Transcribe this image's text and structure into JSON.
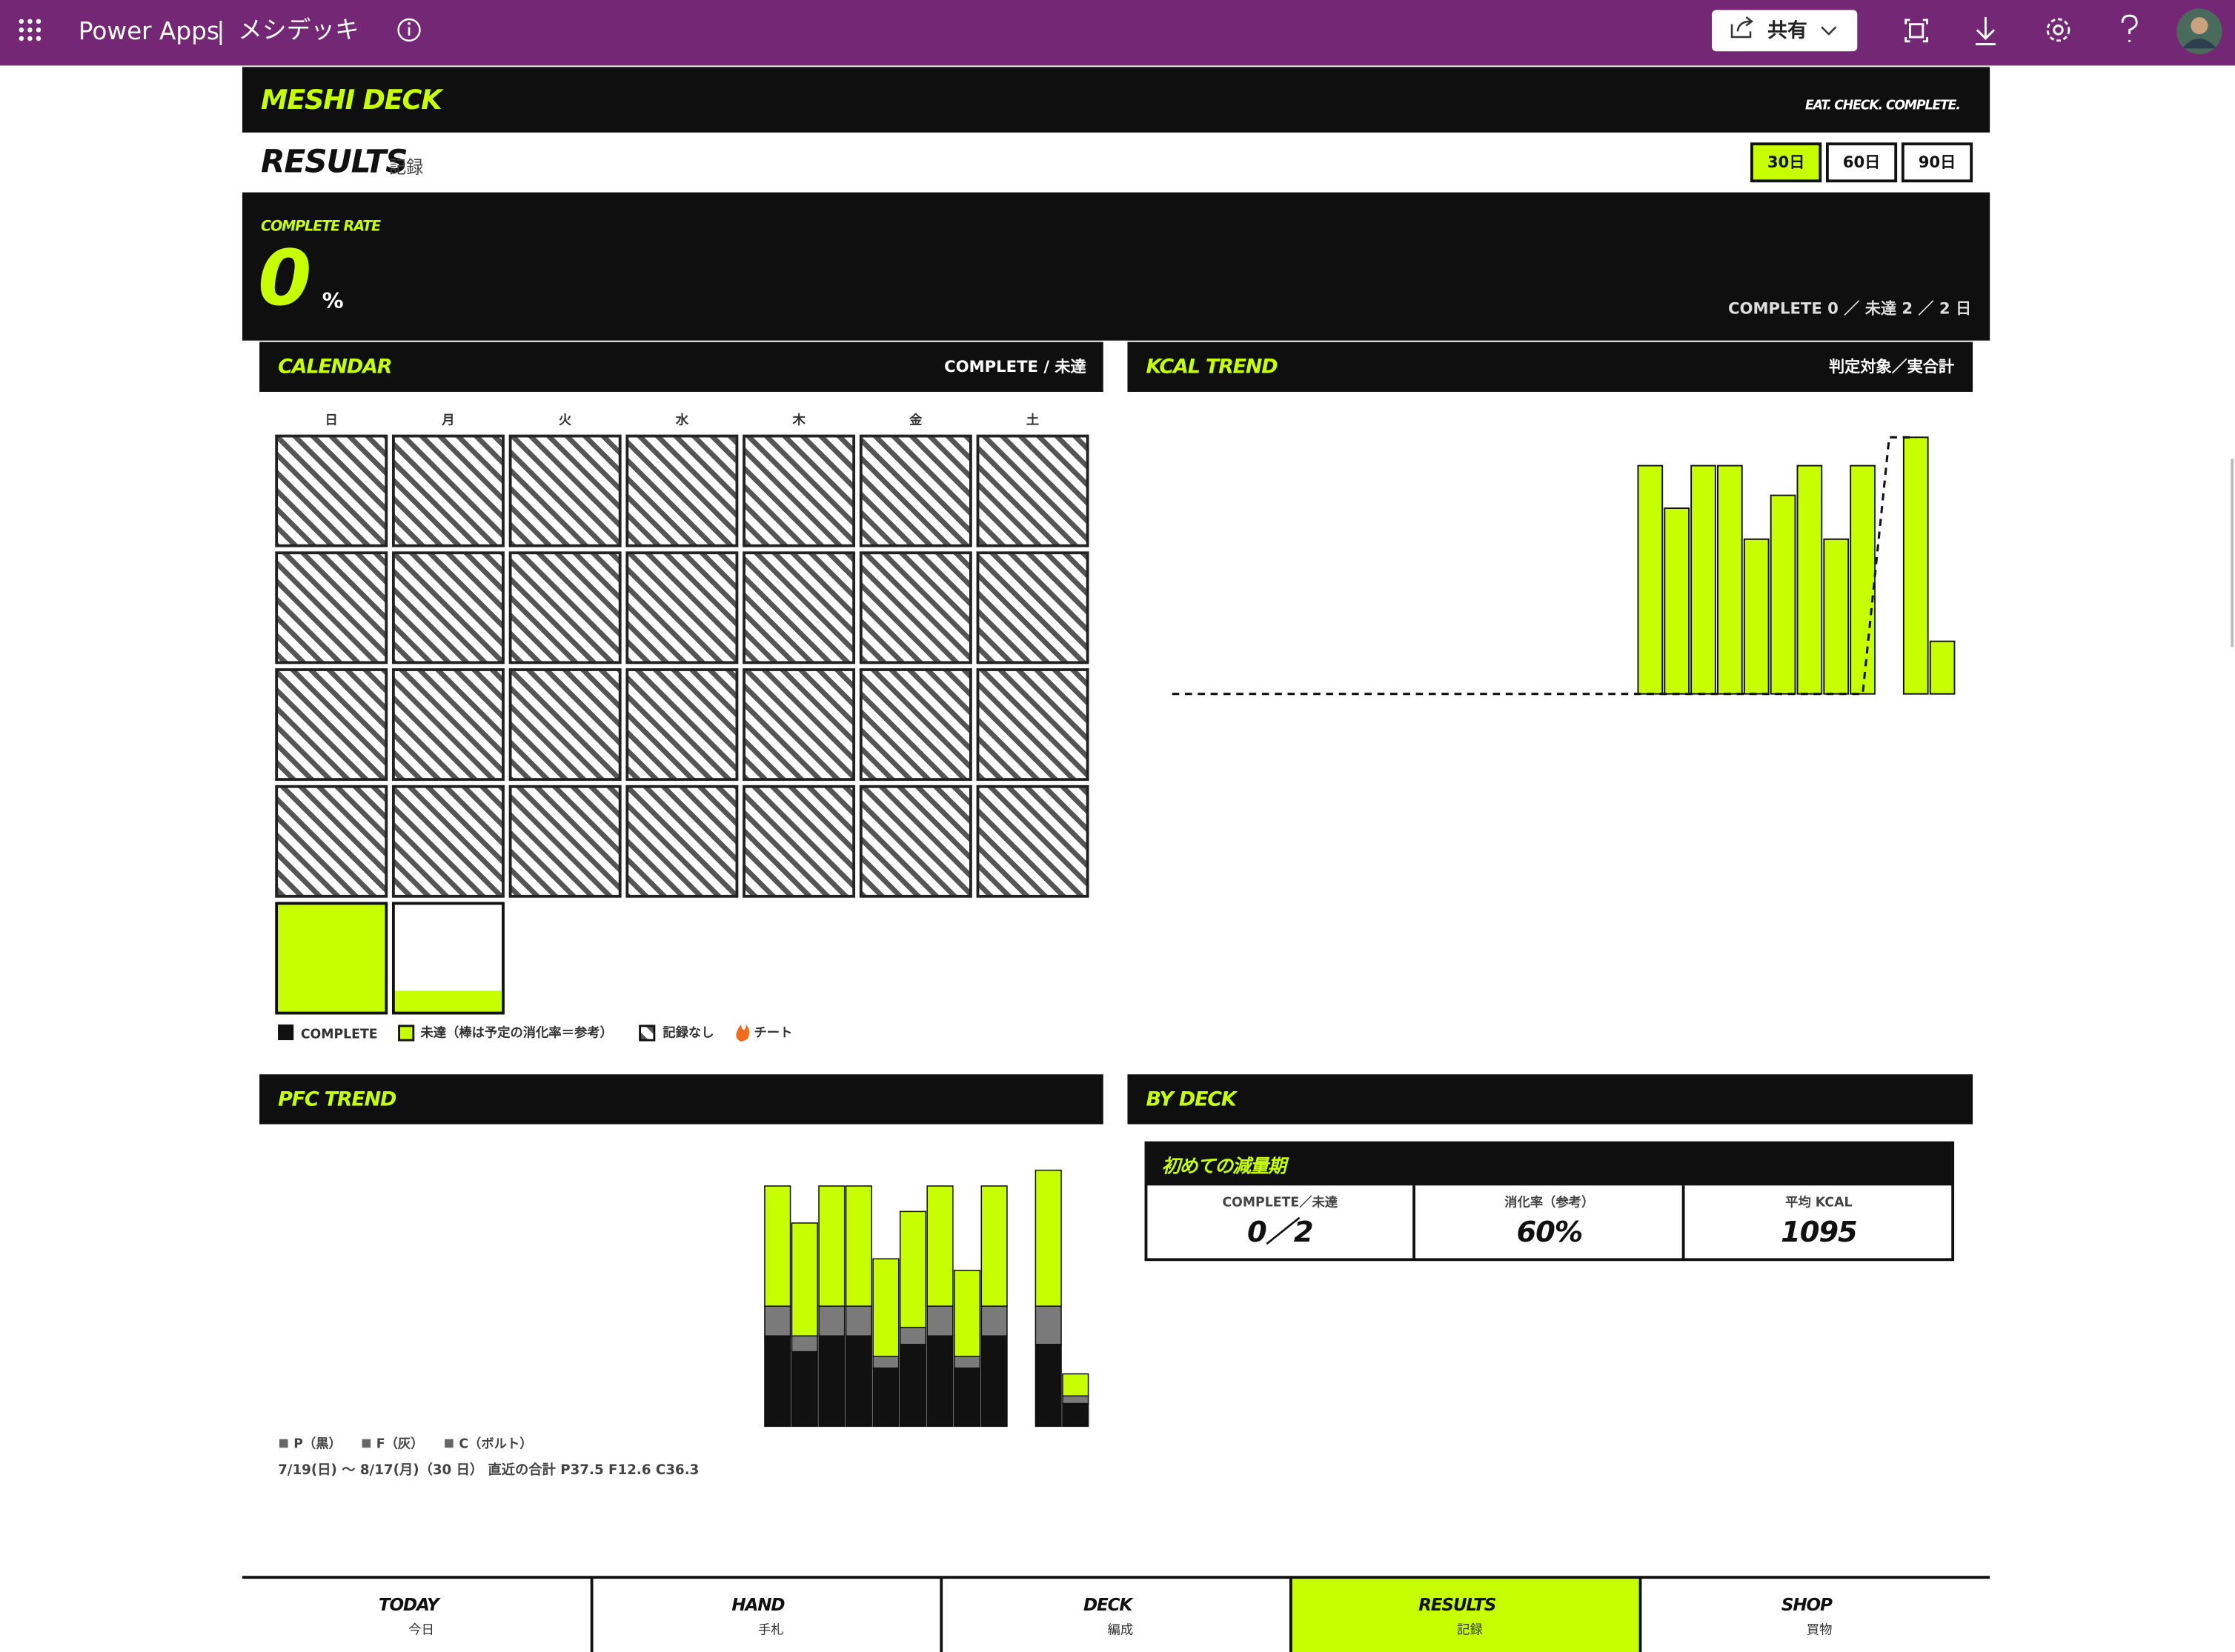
{
  "app_bar": {
    "product": "Power Apps",
    "separator": "|",
    "app_name": "メシデッキ",
    "share": "共有"
  },
  "header": {
    "brand": "MESHI DECK",
    "tagline": "EAT. CHECK. COMPLETE."
  },
  "results": {
    "title": "RESULTS",
    "subtitle": "記録",
    "periods": [
      "30日",
      "60日",
      "90日"
    ],
    "active_period": 0
  },
  "summary": {
    "label": "COMPLETE RATE",
    "value": 0,
    "unit": "%",
    "detail": "COMPLETE 0 ／ 未達 2 ／ 2 日"
  },
  "calendar": {
    "title": "CALENDAR",
    "note": "COMPLETE / 未達",
    "weekdays": [
      "日",
      "月",
      "火",
      "水",
      "木",
      "金",
      "土"
    ],
    "color": "#c8ff00",
    "rates": [
      null,
      null,
      null,
      null,
      null,
      null,
      null,
      null,
      null,
      null,
      null,
      null,
      null,
      null,
      null,
      null,
      null,
      null,
      null,
      null,
      null,
      null,
      null,
      null,
      null,
      null,
      null,
      null,
      100,
      20
    ],
    "legend": [
      "COMPLETE",
      "未達（棒は予定の消化率＝参考）",
      "記録なし",
      "チート"
    ]
  },
  "chart_data": [
    {
      "type": "bar_line",
      "title": "KCAL TREND",
      "subtitle": "判定対象／実合計",
      "categories": [
        null,
        null,
        null,
        null,
        null,
        null,
        null,
        null,
        null,
        null,
        null,
        null,
        null,
        null,
        null,
        null,
        null,
        null,
        null,
        null,
        null,
        null,
        null,
        null,
        null,
        null,
        null,
        null,
        null,
        null
      ],
      "ylim": [
        0,
        2000
      ],
      "series": [
        {
          "type": "bar",
          "color": "#c8ff00",
          "values": [
            null,
            null,
            null,
            null,
            null,
            null,
            null,
            null,
            null,
            null,
            null,
            null,
            null,
            null,
            null,
            null,
            null,
            null,
            1770,
            1440,
            1770,
            1770,
            1200,
            1540,
            1770,
            1200,
            1770,
            null,
            1990,
            408
          ]
        },
        {
          "type": "line",
          "color": "#111111",
          "dashed": true,
          "values": [
            0,
            0,
            0,
            0,
            0,
            0,
            0,
            0,
            0,
            0,
            0,
            0,
            0,
            0,
            0,
            0,
            0,
            0,
            0,
            0,
            0,
            0,
            0,
            0,
            0,
            0,
            0,
            1990,
            1990,
            null
          ]
        }
      ]
    },
    {
      "type": "stacked_bar",
      "title": "PFC TREND",
      "note": "7/19(日) 〜 8/17(月)（30 日） 直近の合計 P37.5 F12.6 C36.3",
      "categories": [
        null,
        null,
        null,
        null,
        null,
        null,
        null,
        null,
        null,
        null,
        null,
        null,
        null,
        null,
        null,
        null,
        null,
        null,
        null,
        null,
        null,
        null,
        null,
        null,
        null,
        null,
        null,
        null,
        null,
        null
      ],
      "ylim": [
        0,
        425
      ],
      "series": [
        {
          "name": "P（黒）",
          "color": "#111111",
          "values": [
            null,
            null,
            null,
            null,
            null,
            null,
            null,
            null,
            null,
            null,
            null,
            null,
            null,
            null,
            null,
            null,
            null,
            null,
            149,
            123,
            149,
            149,
            96,
            135,
            149,
            96,
            149,
            null,
            135,
            37.5
          ]
        },
        {
          "name": "F（灰）",
          "color": "#7a7a7a",
          "values": [
            null,
            null,
            null,
            null,
            null,
            null,
            null,
            null,
            null,
            null,
            null,
            null,
            null,
            null,
            null,
            null,
            null,
            null,
            49,
            26,
            49,
            49,
            19,
            28,
            49,
            19,
            49,
            null,
            63,
            12.6
          ]
        },
        {
          "name": "C（ボルト）",
          "color": "#c8ff00",
          "values": [
            null,
            null,
            null,
            null,
            null,
            null,
            null,
            null,
            null,
            null,
            null,
            null,
            null,
            null,
            null,
            null,
            null,
            null,
            198,
            186,
            198,
            198,
            161,
            191,
            198,
            142,
            198,
            null,
            224,
            36.3
          ]
        }
      ]
    }
  ],
  "by_deck": {
    "title": "BY DECK",
    "deck": "初めての減量期",
    "stats": [
      {
        "label": "COMPLETE／未達",
        "value": "0／2"
      },
      {
        "label": "消化率（参考）",
        "value": "60%"
      },
      {
        "label": "平均 KCAL",
        "value": 1095
      }
    ]
  },
  "nav": {
    "active": 3,
    "items": [
      {
        "label": "TODAY",
        "sub": "今日"
      },
      {
        "label": "HAND",
        "sub": "手札"
      },
      {
        "label": "DECK",
        "sub": "編成"
      },
      {
        "label": "RESULTS",
        "sub": "記録"
      },
      {
        "label": "SHOP",
        "sub": "買物"
      }
    ]
  }
}
